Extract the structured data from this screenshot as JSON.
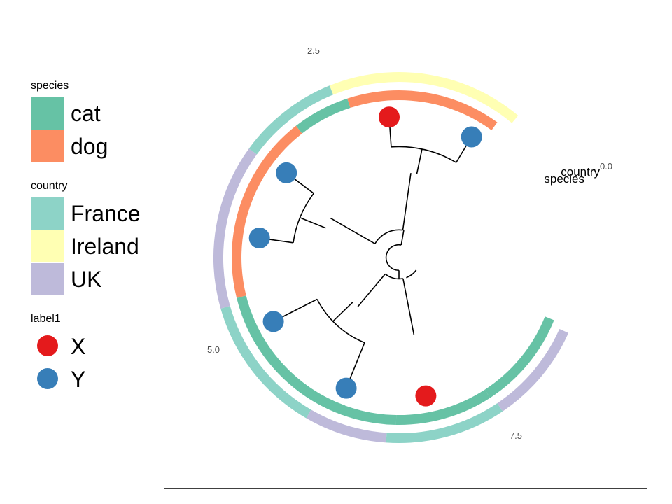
{
  "chart_data": {
    "type": "circular-tree",
    "title": "",
    "layout": "fan",
    "x_scale_ticks": [
      "0.0",
      "2.5",
      "5.0",
      "7.5"
    ],
    "x_scale_max": 10,
    "tree": {
      "nodes": [
        {
          "id": 0,
          "parent": null,
          "x": 0.6,
          "tip": false
        },
        {
          "id": 1,
          "parent": 0,
          "x": 1.3,
          "tip": false
        },
        {
          "id": 2,
          "parent": 0,
          "x": 1.0,
          "tip": false
        },
        {
          "id": 3,
          "parent": 1,
          "x": 4.0,
          "tip": false
        },
        {
          "id": 4,
          "parent": 1,
          "x": 3.7,
          "tip": false
        },
        {
          "id": 5,
          "parent": 3,
          "x": 5.2,
          "tip": false
        },
        {
          "id": 6,
          "parent": 5,
          "x": 6.6,
          "tip": true
        },
        {
          "id": 7,
          "parent": 5,
          "x": 6.6,
          "tip": true
        },
        {
          "id": 8,
          "parent": 4,
          "x": 5.0,
          "tip": false
        },
        {
          "id": 9,
          "parent": 8,
          "x": 6.6,
          "tip": true
        },
        {
          "id": 10,
          "parent": 8,
          "x": 6.6,
          "tip": true
        },
        {
          "id": 11,
          "parent": 2,
          "x": 3.0,
          "tip": false
        },
        {
          "id": 12,
          "parent": 2,
          "x": 3.7,
          "tip": false
        },
        {
          "id": 13,
          "parent": 11,
          "x": 4.3,
          "tip": false
        },
        {
          "id": 14,
          "parent": 13,
          "x": 6.6,
          "tip": true
        },
        {
          "id": 15,
          "parent": 13,
          "x": 6.6,
          "tip": true
        }
      ]
    },
    "tips": [
      {
        "node": 6,
        "label1": "X",
        "species": "cat",
        "country": "UK"
      },
      {
        "node": 7,
        "label1": "Y",
        "species": "cat",
        "country": "UK"
      },
      {
        "node": 9,
        "label1": "Y",
        "species": "cat",
        "country": "France"
      },
      {
        "node": 10,
        "label1": "Y",
        "species": "cat",
        "country": "France"
      },
      {
        "node": 14,
        "label1": "Y",
        "species": "dog",
        "country": "UK"
      },
      {
        "node": 15,
        "label1": "Y",
        "species": "dog",
        "country": "France"
      },
      {
        "node": 12,
        "label1": "X",
        "species": "cat",
        "country": "France"
      }
    ],
    "tip_order_note_removed": true,
    "rings": [
      {
        "name": "species",
        "label": "species"
      },
      {
        "name": "country",
        "label": "country"
      }
    ],
    "legends": [
      {
        "title": "species",
        "type": "fill",
        "items": [
          {
            "label": "cat",
            "color": "#66C2A5"
          },
          {
            "label": "dog",
            "color": "#FC8D62"
          }
        ]
      },
      {
        "title": "country",
        "type": "fill",
        "items": [
          {
            "label": "France",
            "color": "#8DD3C7"
          },
          {
            "label": "Ireland",
            "color": "#FFFFB3"
          },
          {
            "label": "UK",
            "color": "#BEBADA"
          }
        ]
      },
      {
        "title": "label1",
        "type": "point",
        "items": [
          {
            "label": "X",
            "color": "#E41A1C"
          },
          {
            "label": "Y",
            "color": "#377EB8"
          }
        ]
      }
    ],
    "colors": {
      "species": {
        "cat": "#66C2A5",
        "dog": "#FC8D62"
      },
      "country": {
        "France": "#8DD3C7",
        "Ireland": "#FFFFB3",
        "UK": "#BEBADA"
      },
      "label1": {
        "X": "#E41A1C",
        "Y": "#377EB8"
      },
      "branch": "#000000",
      "axis": "#000000"
    }
  }
}
